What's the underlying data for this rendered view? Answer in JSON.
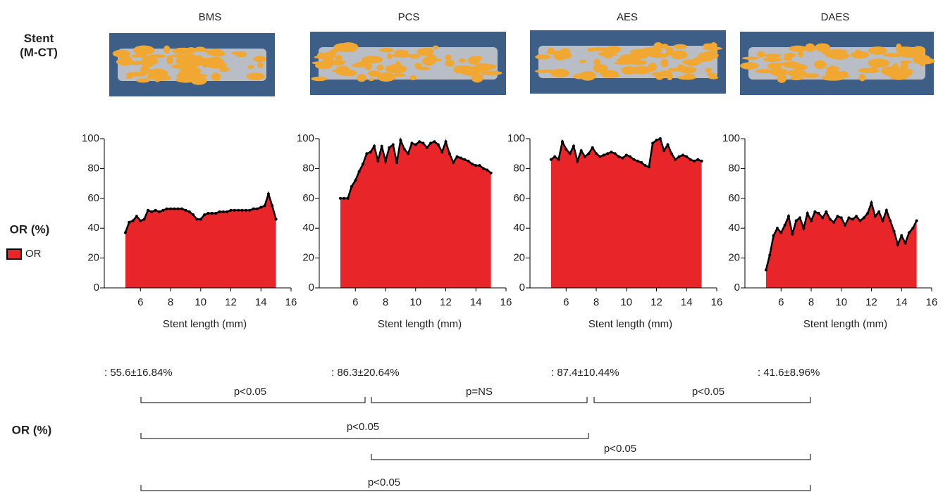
{
  "row_labels": {
    "stent": "Stent\n(M-CT)",
    "or": "OR (%)",
    "or_bottom": "OR (%)"
  },
  "legend_label": "OR",
  "chart_data": [
    {
      "type": "area",
      "title": "BMS",
      "xlabel": "Stent length (mm)",
      "color": "#e8262a",
      "xlim": [
        3.6,
        16
      ],
      "ylim": [
        0,
        100
      ],
      "xticks": [
        6,
        8,
        10,
        12,
        14,
        16
      ],
      "yticks": [
        0,
        20,
        40,
        60,
        80,
        100
      ],
      "x": [
        5,
        5.25,
        5.5,
        5.75,
        6,
        6.25,
        6.5,
        6.75,
        7,
        7.25,
        7.5,
        7.75,
        8,
        8.25,
        8.5,
        8.75,
        9,
        9.25,
        9.5,
        9.75,
        10,
        10.25,
        10.5,
        10.75,
        11,
        11.25,
        11.5,
        11.75,
        12,
        12.25,
        12.5,
        12.75,
        13,
        13.25,
        13.5,
        13.75,
        14,
        14.25,
        14.5,
        14.75,
        15
      ],
      "values": [
        37,
        44,
        45,
        48,
        45,
        46,
        52,
        51,
        52,
        51,
        52,
        53,
        53,
        53,
        53,
        53,
        52,
        51,
        49,
        46,
        46,
        49,
        50,
        50,
        50,
        51,
        51,
        51,
        52,
        52,
        52,
        52,
        52,
        52,
        53,
        53,
        54,
        55,
        63,
        55,
        46
      ]
    },
    {
      "type": "area",
      "title": "PCS",
      "xlabel": "Stent length (mm)",
      "color": "#e8262a",
      "xlim": [
        3.6,
        16
      ],
      "ylim": [
        0,
        100
      ],
      "xticks": [
        6,
        8,
        10,
        12,
        14,
        16
      ],
      "yticks": [
        0,
        20,
        40,
        60,
        80,
        100
      ],
      "x": [
        5,
        5.25,
        5.5,
        5.75,
        6,
        6.25,
        6.5,
        6.75,
        7,
        7.25,
        7.5,
        7.75,
        8,
        8.25,
        8.5,
        8.75,
        9,
        9.25,
        9.5,
        9.75,
        10,
        10.25,
        10.5,
        10.75,
        11,
        11.25,
        11.5,
        11.75,
        12,
        12.25,
        12.5,
        12.75,
        13,
        13.25,
        13.5,
        13.75,
        14,
        14.25,
        14.5,
        14.75,
        15
      ],
      "values": [
        60,
        60,
        60,
        68,
        72,
        78,
        83,
        90,
        91,
        95,
        85,
        95,
        85,
        94,
        96,
        84,
        99,
        93,
        90,
        97,
        96,
        98,
        97,
        94,
        97,
        98,
        96,
        91,
        98,
        90,
        84,
        88,
        87,
        86,
        85,
        83,
        82,
        82,
        80,
        79,
        77
      ]
    },
    {
      "type": "area",
      "title": "AES",
      "xlabel": "Stent length (mm)",
      "color": "#e8262a",
      "xlim": [
        3.6,
        16
      ],
      "ylim": [
        0,
        100
      ],
      "xticks": [
        6,
        8,
        10,
        12,
        14,
        16
      ],
      "yticks": [
        0,
        20,
        40,
        60,
        80,
        100
      ],
      "x": [
        5,
        5.25,
        5.5,
        5.75,
        6,
        6.25,
        6.5,
        6.75,
        7,
        7.25,
        7.5,
        7.75,
        8,
        8.25,
        8.5,
        8.75,
        9,
        9.25,
        9.5,
        9.75,
        10,
        10.25,
        10.5,
        10.75,
        11,
        11.25,
        11.5,
        11.75,
        12,
        12.25,
        12.5,
        12.75,
        13,
        13.25,
        13.5,
        13.75,
        14,
        14.25,
        14.5,
        14.75,
        15
      ],
      "values": [
        86,
        88,
        86,
        98,
        93,
        90,
        95,
        85,
        92,
        88,
        90,
        94,
        90,
        88,
        89,
        90,
        91,
        90,
        88,
        87,
        89,
        88,
        86,
        85,
        84,
        82,
        81,
        97,
        99,
        100,
        92,
        96,
        90,
        86,
        88,
        89,
        88,
        86,
        85,
        86,
        85
      ]
    },
    {
      "type": "area",
      "title": "DAES",
      "xlabel": "Stent length (mm)",
      "color": "#e8262a",
      "xlim": [
        3.6,
        16
      ],
      "ylim": [
        0,
        100
      ],
      "xticks": [
        6,
        8,
        10,
        12,
        14,
        16
      ],
      "yticks": [
        0,
        20,
        40,
        60,
        80,
        100
      ],
      "x": [
        5,
        5.25,
        5.5,
        5.75,
        6,
        6.25,
        6.5,
        6.75,
        7,
        7.25,
        7.5,
        7.75,
        8,
        8.25,
        8.5,
        8.75,
        9,
        9.25,
        9.5,
        9.75,
        10,
        10.25,
        10.5,
        10.75,
        11,
        11.25,
        11.5,
        11.75,
        12,
        12.25,
        12.5,
        12.75,
        13,
        13.25,
        13.5,
        13.75,
        14,
        14.25,
        14.5,
        14.75,
        15
      ],
      "values": [
        12,
        22,
        35,
        40,
        37,
        42,
        48,
        36,
        45,
        47,
        40,
        50,
        45,
        51,
        50,
        47,
        51,
        46,
        44,
        48,
        47,
        42,
        47,
        46,
        48,
        45,
        47,
        50,
        57,
        48,
        51,
        45,
        52,
        45,
        38,
        29,
        35,
        30,
        37,
        40,
        45
      ]
    }
  ],
  "stats": [
    ": 55.6±16.84%",
    ": 86.3±20.64%",
    ": 87.4±10.44%",
    ": 41.6±8.96%"
  ],
  "comparisons": [
    "p<0.05",
    "p=NS",
    "p<0.05",
    "p<0.05",
    "p<0.05",
    "p<0.05"
  ]
}
